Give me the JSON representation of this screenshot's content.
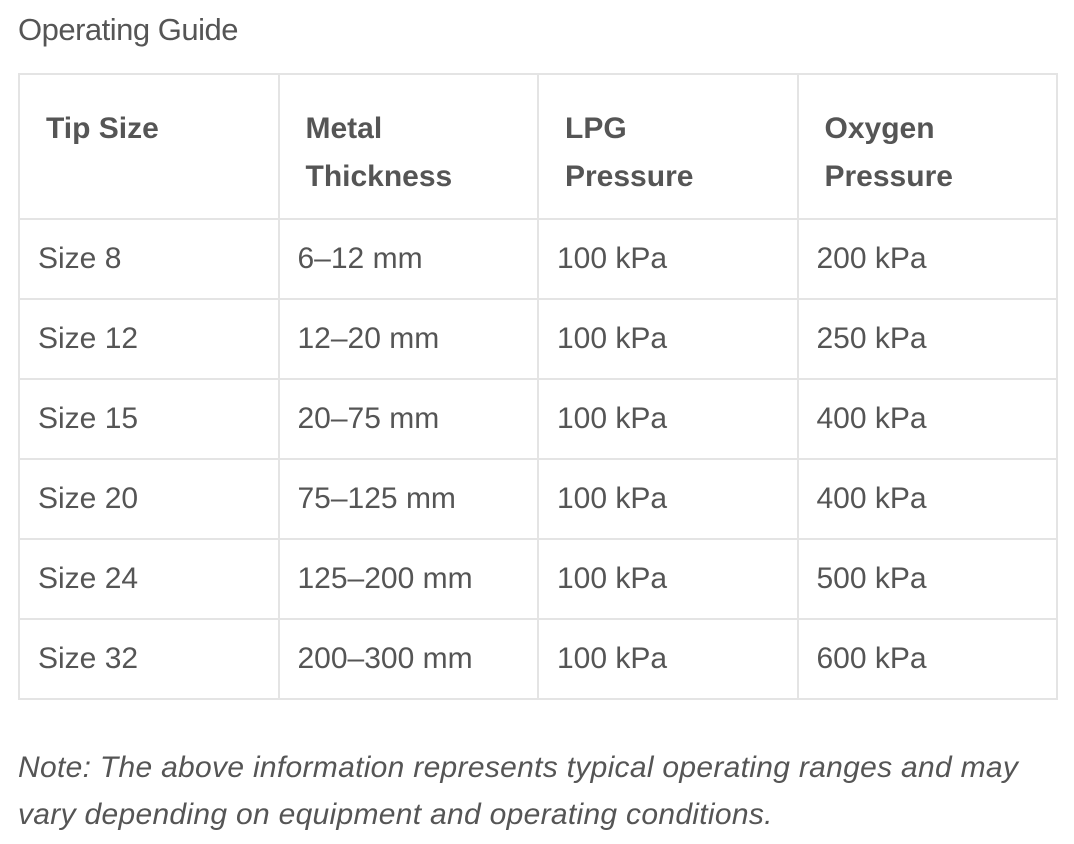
{
  "title": "Operating Guide",
  "table": {
    "headers": [
      "Tip Size",
      "Metal Thickness",
      "LPG Pressure",
      "Oxygen Pressure"
    ],
    "rows": [
      [
        "Size 8",
        "6–12 mm",
        "100 kPa",
        "200 kPa"
      ],
      [
        "Size 12",
        "12–20 mm",
        "100 kPa",
        "250 kPa"
      ],
      [
        "Size 15",
        "20–75 mm",
        "100 kPa",
        "400 kPa"
      ],
      [
        "Size 20",
        "75–125 mm",
        "100 kPa",
        "400 kPa"
      ],
      [
        "Size 24",
        "125–200 mm",
        "100 kPa",
        "500 kPa"
      ],
      [
        "Size 32",
        "200–300 mm",
        "100 kPa",
        "600 kPa"
      ]
    ]
  },
  "note": "Note: The above information represents typical operating ranges and may vary depending on equipment and operating conditions."
}
